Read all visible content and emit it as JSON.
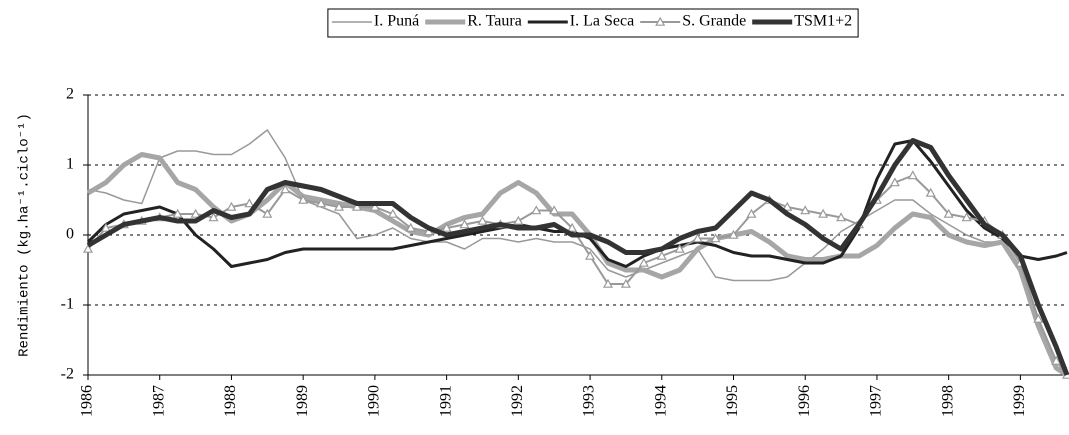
{
  "chart_data": {
    "type": "line",
    "y_label": "Rendimiento (kg.ha⁻¹.ciclo⁻¹)",
    "x": [
      1986,
      1986.25,
      1986.5,
      1986.75,
      1987,
      1987.25,
      1987.5,
      1987.75,
      1988,
      1988.25,
      1988.5,
      1988.75,
      1989,
      1989.25,
      1989.5,
      1989.75,
      1990,
      1990.25,
      1990.5,
      1990.75,
      1991,
      1991.25,
      1991.5,
      1991.75,
      1992,
      1992.25,
      1992.5,
      1992.75,
      1993,
      1993.25,
      1993.5,
      1993.75,
      1994,
      1994.25,
      1994.5,
      1994.75,
      1995,
      1995.25,
      1995.5,
      1995.75,
      1996,
      1996.25,
      1996.5,
      1996.75,
      1997,
      1997.25,
      1997.5,
      1997.75,
      1998,
      1998.25,
      1998.5,
      1998.75,
      1999,
      1999.25,
      1999.5,
      1999.65
    ],
    "series": [
      {
        "name": "I. Puná",
        "color": "#999999",
        "line_width": 1.5,
        "values": [
          0.65,
          0.6,
          0.5,
          0.45,
          1.1,
          1.2,
          1.2,
          1.15,
          1.15,
          1.3,
          1.5,
          1.1,
          0.5,
          0.4,
          0.3,
          -0.05,
          0.0,
          0.1,
          -0.05,
          -0.1,
          -0.1,
          -0.2,
          -0.05,
          -0.05,
          -0.1,
          -0.05,
          -0.1,
          -0.1,
          -0.2,
          -0.5,
          -0.6,
          -0.5,
          -0.4,
          -0.3,
          -0.2,
          -0.6,
          -0.65,
          -0.65,
          -0.65,
          -0.6,
          -0.4,
          -0.2,
          0.05,
          0.2,
          0.35,
          0.5,
          0.5,
          0.3,
          0.15,
          0.0,
          -0.1,
          -0.1,
          -0.5,
          -1.2,
          -1.8,
          -1.9
        ]
      },
      {
        "name": "R. Taura",
        "color": "#a6a6a6",
        "line_width": 5,
        "values": [
          0.6,
          0.75,
          1.0,
          1.15,
          1.1,
          0.75,
          0.65,
          0.4,
          0.2,
          0.3,
          0.5,
          0.75,
          0.55,
          0.5,
          0.45,
          0.4,
          0.35,
          0.2,
          0.05,
          0.0,
          0.15,
          0.25,
          0.3,
          0.6,
          0.75,
          0.6,
          0.3,
          0.3,
          0.0,
          -0.4,
          -0.5,
          -0.5,
          -0.6,
          -0.5,
          -0.2,
          -0.05,
          0.0,
          0.05,
          -0.1,
          -0.3,
          -0.35,
          -0.35,
          -0.3,
          -0.3,
          -0.15,
          0.1,
          0.3,
          0.25,
          0.0,
          -0.1,
          -0.15,
          -0.1,
          -0.5,
          -1.3,
          -1.9,
          -2.0
        ]
      },
      {
        "name": "I. La Seca",
        "color": "#222222",
        "line_width": 3,
        "values": [
          -0.1,
          0.15,
          0.3,
          0.35,
          0.4,
          0.3,
          0.0,
          -0.2,
          -0.45,
          -0.4,
          -0.35,
          -0.25,
          -0.2,
          -0.2,
          -0.2,
          -0.2,
          -0.2,
          -0.2,
          -0.15,
          -0.1,
          -0.05,
          0.0,
          0.05,
          0.1,
          0.15,
          0.1,
          0.05,
          0.05,
          -0.05,
          -0.35,
          -0.45,
          -0.3,
          -0.2,
          -0.15,
          -0.1,
          -0.15,
          -0.25,
          -0.3,
          -0.3,
          -0.35,
          -0.4,
          -0.4,
          -0.3,
          0.1,
          0.8,
          1.3,
          1.35,
          1.05,
          0.7,
          0.35,
          0.1,
          -0.05,
          -0.3,
          -0.35,
          -0.3,
          -0.25
        ]
      },
      {
        "name": "S. Grande",
        "color": "#999999",
        "line_width": 2,
        "marker": "triangle",
        "values": [
          -0.2,
          0.1,
          0.15,
          0.2,
          0.25,
          0.3,
          0.3,
          0.25,
          0.4,
          0.45,
          0.3,
          0.65,
          0.5,
          0.45,
          0.4,
          0.4,
          0.4,
          0.3,
          0.1,
          0.05,
          0.1,
          0.15,
          0.2,
          0.15,
          0.2,
          0.35,
          0.35,
          0.1,
          -0.3,
          -0.7,
          -0.7,
          -0.4,
          -0.3,
          -0.2,
          -0.05,
          -0.05,
          0.0,
          0.3,
          0.5,
          0.4,
          0.35,
          0.3,
          0.25,
          0.15,
          0.5,
          0.75,
          0.85,
          0.6,
          0.3,
          0.25,
          0.2,
          0.0,
          -0.4,
          -1.2,
          -1.8,
          -2.0
        ]
      },
      {
        "name": "TSM1+2",
        "color": "#333333",
        "line_width": 5,
        "values": [
          -0.15,
          0.0,
          0.15,
          0.2,
          0.25,
          0.2,
          0.2,
          0.35,
          0.25,
          0.3,
          0.65,
          0.75,
          0.7,
          0.65,
          0.55,
          0.45,
          0.45,
          0.45,
          0.25,
          0.1,
          0.0,
          0.05,
          0.1,
          0.15,
          0.1,
          0.1,
          0.15,
          0.0,
          0.0,
          -0.1,
          -0.25,
          -0.25,
          -0.2,
          -0.05,
          0.05,
          0.1,
          0.35,
          0.6,
          0.5,
          0.3,
          0.15,
          -0.05,
          -0.2,
          0.15,
          0.55,
          1.0,
          1.35,
          1.25,
          0.85,
          0.5,
          0.15,
          0.0,
          -0.3,
          -1.0,
          -1.6,
          -2.0
        ]
      }
    ],
    "xlim": [
      1986,
      1999.65
    ],
    "xticks": [
      1986,
      1987,
      1988,
      1989,
      1990,
      1991,
      1992,
      1993,
      1994,
      1995,
      1996,
      1997,
      1998,
      1999
    ],
    "ylim": [
      -2,
      2
    ],
    "yticks": [
      -2,
      -1,
      0,
      1,
      2
    ],
    "grid": true,
    "legend": "top"
  }
}
